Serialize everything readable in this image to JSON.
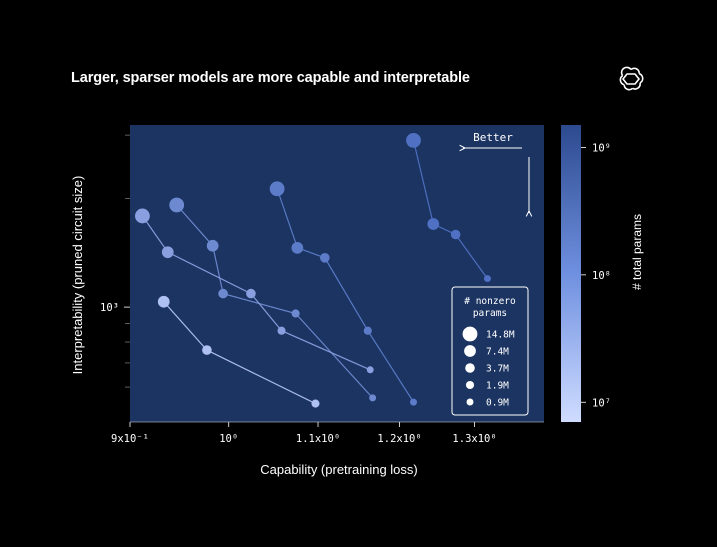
{
  "title": "Larger, sparser models are more capable and interpretable",
  "logo_icon": "openai-logo-icon",
  "chart_data": {
    "type": "scatter",
    "title": "Larger, sparser models are more capable and interpretable",
    "xlabel": "Capability (pretraining loss)",
    "ylabel": "Interpretability (pruned circuit size)",
    "x_scale": "log",
    "y_scale": "log",
    "x_ticks": [
      {
        "value": 0.9,
        "label": "9x10⁻¹"
      },
      {
        "value": 1.0,
        "label": "10⁰"
      },
      {
        "value": 1.1,
        "label": "1.1x10⁰"
      },
      {
        "value": 1.2,
        "label": "1.2x10⁰"
      },
      {
        "value": 1.3,
        "label": "1.3x10⁰"
      }
    ],
    "y_ticks": [
      {
        "value": 1000,
        "label": "10³"
      }
    ],
    "xlim": [
      0.9,
      1.4
    ],
    "ylim": [
      480,
      3200
    ],
    "annotation": "Better",
    "colorbar": {
      "label": "# total params",
      "scale": "log",
      "range": [
        7000000,
        1500000000
      ],
      "ticks": [
        {
          "value": 10000000,
          "label": "10⁷"
        },
        {
          "value": 100000000,
          "label": "10⁸"
        },
        {
          "value": 1000000000,
          "label": "10⁹"
        }
      ],
      "color_low": "#c8d6ff",
      "color_high": "#2d4a8f"
    },
    "size_legend": {
      "title": "# nonzero params",
      "entries": [
        {
          "label": "14.8M",
          "value": 14800000
        },
        {
          "label": "7.4M",
          "value": 7400000
        },
        {
          "label": "3.7M",
          "value": 3700000
        },
        {
          "label": "1.9M",
          "value": 1900000
        },
        {
          "label": "0.9M",
          "value": 900000
        }
      ]
    },
    "series": [
      {
        "total_params": 1000000000,
        "points": [
          {
            "x": 1.218,
            "y": 2900,
            "nonzero": 14800000
          },
          {
            "x": 1.244,
            "y": 1700,
            "nonzero": 7400000
          },
          {
            "x": 1.274,
            "y": 1590,
            "nonzero": 3700000
          },
          {
            "x": 1.318,
            "y": 1200,
            "nonzero": 900000
          }
        ]
      },
      {
        "total_params": 600000000,
        "points": [
          {
            "x": 1.053,
            "y": 2130,
            "nonzero": 14800000
          },
          {
            "x": 1.076,
            "y": 1460,
            "nonzero": 7400000
          },
          {
            "x": 1.108,
            "y": 1370,
            "nonzero": 3700000
          },
          {
            "x": 1.16,
            "y": 860,
            "nonzero": 1900000
          },
          {
            "x": 1.218,
            "y": 545,
            "nonzero": 900000
          }
        ]
      },
      {
        "total_params": 300000000,
        "points": [
          {
            "x": 0.946,
            "y": 1920,
            "nonzero": 14800000
          },
          {
            "x": 0.983,
            "y": 1480,
            "nonzero": 7400000
          },
          {
            "x": 0.994,
            "y": 1090,
            "nonzero": 3700000
          },
          {
            "x": 1.074,
            "y": 960,
            "nonzero": 1900000
          },
          {
            "x": 1.166,
            "y": 560,
            "nonzero": 900000
          }
        ]
      },
      {
        "total_params": 100000000,
        "points": [
          {
            "x": 0.912,
            "y": 1790,
            "nonzero": 14800000
          },
          {
            "x": 0.937,
            "y": 1420,
            "nonzero": 7400000
          },
          {
            "x": 1.024,
            "y": 1090,
            "nonzero": 3700000
          },
          {
            "x": 1.058,
            "y": 860,
            "nonzero": 1900000
          },
          {
            "x": 1.163,
            "y": 670,
            "nonzero": 900000
          }
        ]
      },
      {
        "total_params": 20000000,
        "points": [
          {
            "x": 0.933,
            "y": 1035,
            "nonzero": 7400000
          },
          {
            "x": 0.977,
            "y": 760,
            "nonzero": 3700000
          },
          {
            "x": 1.097,
            "y": 540,
            "nonzero": 1900000
          }
        ]
      }
    ]
  }
}
